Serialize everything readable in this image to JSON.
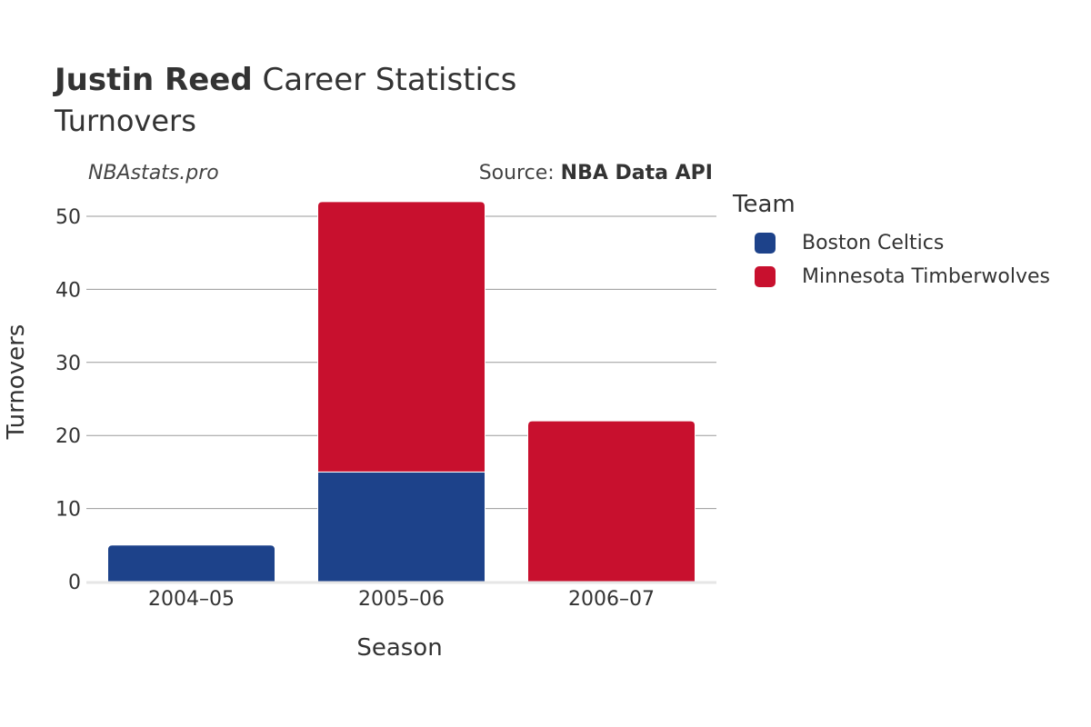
{
  "header": {
    "title_bold": "Justin Reed",
    "title_rest": " Career Statistics",
    "subtitle": "Turnovers",
    "watermark": "NBAstats.pro",
    "source_prefix": "Source: ",
    "source_name": "NBA Data API"
  },
  "legend": {
    "title": "Team",
    "items": [
      {
        "label": "Boston Celtics",
        "color": "#1d428a"
      },
      {
        "label": "Minnesota Timberwolves",
        "color": "#c8102e"
      }
    ]
  },
  "chart_data": {
    "type": "bar",
    "stacked": true,
    "categories": [
      "2004–05",
      "2005–06",
      "2006–07"
    ],
    "series": [
      {
        "name": "Boston Celtics",
        "values": [
          5,
          15,
          0
        ],
        "color": "#1d428a"
      },
      {
        "name": "Minnesota Timberwolves",
        "values": [
          0,
          37,
          22
        ],
        "color": "#c8102e"
      }
    ],
    "xlabel": "Season",
    "ylabel": "Turnovers",
    "ylim": [
      0,
      52
    ],
    "yticks": [
      0,
      10,
      20,
      30,
      40,
      50
    ],
    "grid": true,
    "legend_position": "right"
  }
}
